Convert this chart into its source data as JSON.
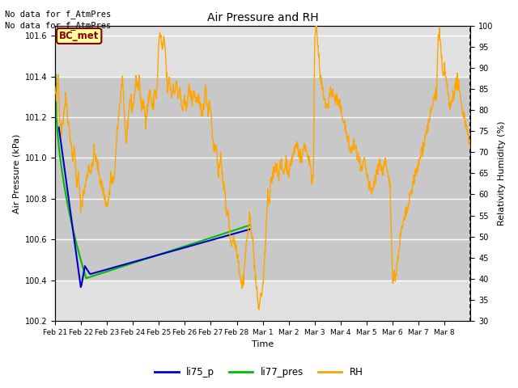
{
  "title": "Air Pressure and RH",
  "xlabel": "Time",
  "ylabel_left": "Air Pressure (kPa)",
  "ylabel_right": "Relativity Humidity (%)",
  "ylim_left": [
    100.2,
    101.65
  ],
  "ylim_right": [
    30,
    100
  ],
  "yticks_left": [
    100.2,
    100.4,
    100.6,
    100.8,
    101.0,
    101.2,
    101.4,
    101.6
  ],
  "yticks_right": [
    30,
    35,
    40,
    45,
    50,
    55,
    60,
    65,
    70,
    75,
    80,
    85,
    90,
    95,
    100
  ],
  "header_text1": "No data for f_AtmPres",
  "header_text2": "No data for f_AtmPres",
  "box_label": "BC_met",
  "legend_labels": [
    "li75_p",
    "li77_pres",
    "RH"
  ],
  "legend_colors": [
    "#0000cc",
    "#00bb00",
    "#ffa500"
  ],
  "line_colors": {
    "li75_p": "#0000cc",
    "li77_pres": "#00bb00",
    "RH": "#ffa500"
  },
  "background_color": "#ffffff",
  "plot_bg_color": "#e0e0e0",
  "shaded_band": [
    100.4,
    101.4
  ],
  "shaded_band_color": "#c8c8c8",
  "grid_color": "#ffffff",
  "xtick_labels": [
    "Feb 21",
    "Feb 22",
    "Feb 23",
    "Feb 24",
    "Feb 25",
    "Feb 26",
    "Feb 27",
    "Feb 28",
    "Mar 1",
    "Mar 2",
    "Mar 3",
    "Mar 4",
    "Mar 5",
    "Mar 6",
    "Mar 7",
    "Mar 8"
  ]
}
